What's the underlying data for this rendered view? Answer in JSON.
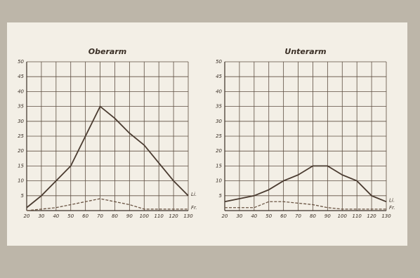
{
  "chart_data": [
    {
      "type": "line",
      "title": "Oberarm",
      "x": [
        20,
        30,
        40,
        50,
        60,
        70,
        80,
        90,
        100,
        110,
        120,
        130
      ],
      "xlim": [
        20,
        130
      ],
      "xticks": [
        20,
        30,
        40,
        50,
        60,
        70,
        80,
        90,
        100,
        110,
        120,
        130
      ],
      "ylim": [
        0,
        50
      ],
      "yticks": [
        5,
        10,
        15,
        20,
        25,
        30,
        35,
        40,
        45,
        50
      ],
      "grid": true,
      "series": [
        {
          "name": "Li.",
          "color": "#4a3b30",
          "dashed": false,
          "values": [
            1,
            5,
            10,
            15,
            25,
            35,
            31,
            26,
            22,
            16,
            10,
            5
          ]
        },
        {
          "name": "Fr.",
          "color": "#6b5544",
          "dashed": true,
          "values": [
            0,
            0.5,
            1,
            2,
            3,
            4,
            3,
            2,
            0.5,
            0.5,
            0.5,
            0.5
          ]
        }
      ]
    },
    {
      "type": "line",
      "title": "Unterarm",
      "x": [
        20,
        30,
        40,
        50,
        60,
        70,
        80,
        90,
        100,
        110,
        120,
        130
      ],
      "xlim": [
        20,
        130
      ],
      "xticks": [
        20,
        30,
        40,
        50,
        60,
        70,
        80,
        90,
        100,
        110,
        120,
        130
      ],
      "ylim": [
        0,
        50
      ],
      "yticks": [
        5,
        10,
        15,
        20,
        25,
        30,
        35,
        40,
        45,
        50
      ],
      "grid": true,
      "series": [
        {
          "name": "Li.",
          "color": "#4a3b30",
          "dashed": false,
          "values": [
            3,
            4,
            5,
            7,
            10,
            12,
            15,
            15,
            12,
            10,
            5,
            3
          ]
        },
        {
          "name": "Fr.",
          "color": "#6b5544",
          "dashed": true,
          "values": [
            1,
            1,
            1,
            3,
            3,
            2.5,
            2,
            1,
            0.5,
            0.5,
            0.5,
            0.5
          ]
        }
      ]
    }
  ]
}
